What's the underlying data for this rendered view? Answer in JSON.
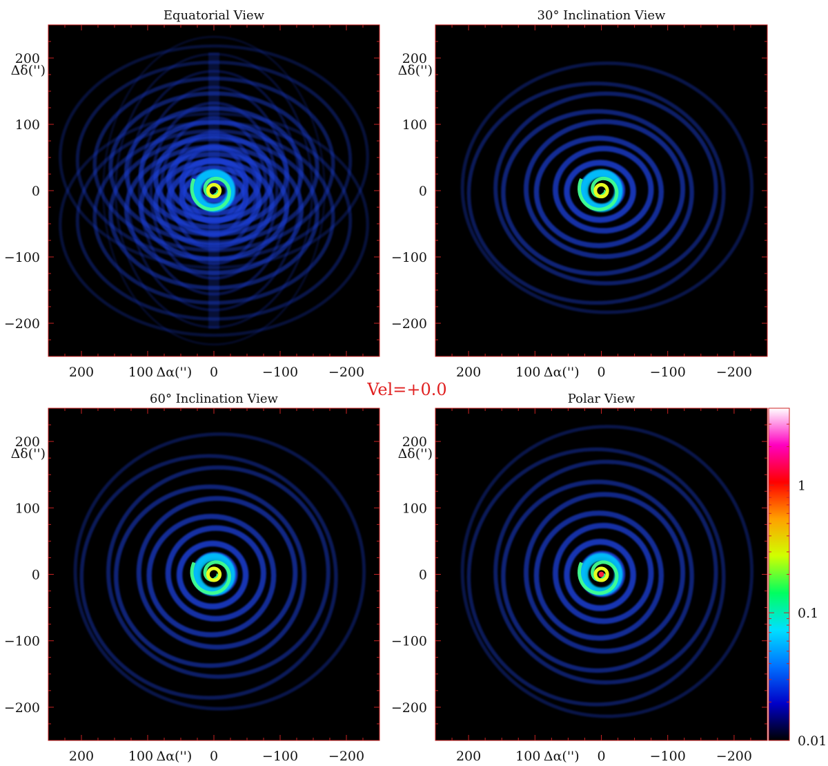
{
  "figure": {
    "velocity_label": "Vel=+0.0",
    "colors": {
      "frame_border": "#cc2222",
      "tick_color": "#cc2222",
      "velocity_label_color": "#e02020",
      "background": "#000000",
      "text": "#111111"
    }
  },
  "chart_data": [
    {
      "type": "heatmap",
      "title": "Equatorial View",
      "xlabel": "Δα('')",
      "ylabel": "Δδ('')",
      "xlim": [
        250,
        -250
      ],
      "ylim": [
        -250,
        250
      ],
      "x_ticks": [
        200,
        100,
        0,
        -100,
        -200
      ],
      "y_ticks": [
        200,
        100,
        0,
        -100,
        -200
      ],
      "pattern": "overlapping-shells",
      "shell_radii": [
        28,
        48,
        68,
        88,
        110,
        132,
        156,
        180,
        206,
        232
      ],
      "shell_axis_ratio": 0.72
    },
    {
      "type": "heatmap",
      "title": "30° Inclination View",
      "xlabel": "Δα('')",
      "ylabel": "Δδ('')",
      "xlim": [
        250,
        -250
      ],
      "ylim": [
        -250,
        250
      ],
      "x_ticks": [
        200,
        100,
        0,
        -100,
        -200
      ],
      "y_ticks": [
        200,
        100,
        0,
        -100,
        -200
      ],
      "pattern": "spiral",
      "shell_radii": [
        30,
        50,
        72,
        94,
        118,
        142,
        166,
        192,
        218
      ],
      "shell_axis_ratio": 0.86
    },
    {
      "type": "heatmap",
      "title": "60° Inclination View",
      "xlabel": "Δα('')",
      "ylabel": "Δδ('')",
      "xlim": [
        250,
        -250
      ],
      "ylim": [
        -250,
        250
      ],
      "x_ticks": [
        200,
        100,
        0,
        -100,
        -200
      ],
      "y_ticks": [
        200,
        100,
        0,
        -100,
        -200
      ],
      "pattern": "spiral",
      "shell_radii": [
        30,
        50,
        72,
        94,
        118,
        142,
        166,
        192,
        218
      ],
      "shell_axis_ratio": 0.95
    },
    {
      "type": "heatmap",
      "title": "Polar View",
      "xlabel": "Δα('')",
      "ylabel": "Δδ('')",
      "xlim": [
        250,
        -250
      ],
      "ylim": [
        -250,
        250
      ],
      "x_ticks": [
        200,
        100,
        0,
        -100,
        -200
      ],
      "y_ticks": [
        200,
        100,
        0,
        -100,
        -200
      ],
      "pattern": "spiral",
      "shell_radii": [
        30,
        50,
        72,
        94,
        118,
        142,
        166,
        192,
        218
      ],
      "shell_axis_ratio": 1.0
    }
  ],
  "colorbar": {
    "scale": "log",
    "range": [
      0.01,
      4
    ],
    "tick_labels": [
      "1",
      "0.1",
      "0.01"
    ],
    "tick_values": [
      1,
      0.1,
      0.01
    ],
    "colors": [
      "#000000",
      "#0000c8",
      "#0070ff",
      "#00e0ff",
      "#00ff60",
      "#d0ff00",
      "#ffa000",
      "#ff0000",
      "#ff00c0",
      "#ffffff"
    ]
  }
}
